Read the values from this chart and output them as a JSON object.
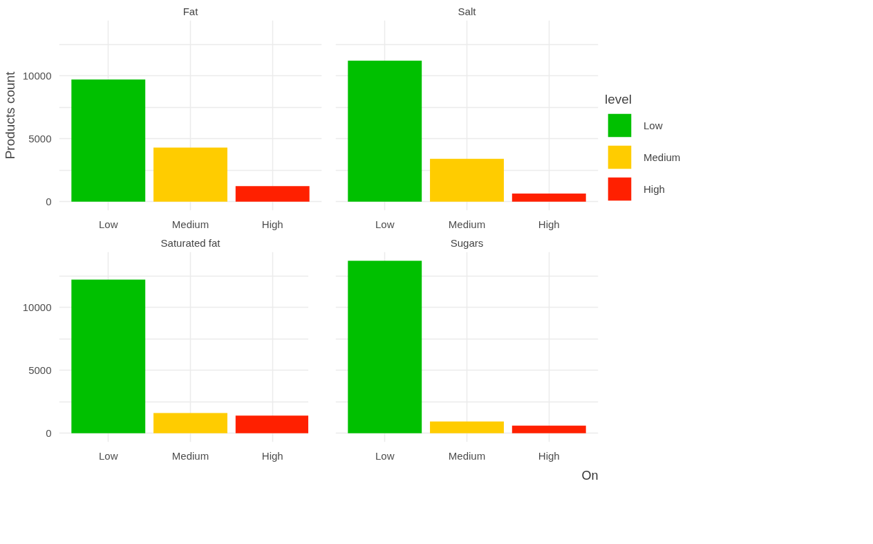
{
  "chart_data": [
    {
      "type": "bar",
      "title": "Fat",
      "ylabel": "Products count",
      "categories": [
        "Low",
        "Medium",
        "High"
      ],
      "series": [
        {
          "color": "#00c000",
          "values": [
            9700,
            null,
            null
          ]
        },
        {
          "color": "#ffcc00",
          "values": [
            null,
            4300,
            null
          ]
        },
        {
          "color": "#ff2000",
          "values": [
            null,
            null,
            1240
          ]
        }
      ],
      "ylim": [
        -700,
        14400
      ],
      "yticks": [
        0,
        {
          "value": 2500,
          "label": null
        },
        5000,
        {
          "value": 7500,
          "label": null
        },
        10000,
        {
          "value": 12500,
          "label": null
        }
      ],
      "grid": true
    },
    {
      "type": "bar",
      "title": "Salt",
      "tick_labels": "x",
      "legend_title": "level",
      "legend": "right",
      "categories": [
        "Low",
        "Medium",
        "High"
      ],
      "series": [
        {
          "name": "Low",
          "color": "#00c000",
          "values": [
            11200,
            null,
            null
          ]
        },
        {
          "name": "Medium",
          "color": "#ffcc00",
          "values": [
            null,
            3400,
            null
          ]
        },
        {
          "name": "High",
          "color": "#ff2000",
          "values": [
            null,
            null,
            650
          ]
        }
      ],
      "ylim": [
        -700,
        14400
      ],
      "yticks": [
        0,
        {
          "value": 2500,
          "label": null
        },
        5000,
        {
          "value": 7500,
          "label": null
        },
        10000,
        {
          "value": 12500,
          "label": null
        }
      ],
      "grid": true
    },
    {
      "type": "bar",
      "title": "Saturated fat",
      "categories": [
        "Low",
        "Medium",
        "High"
      ],
      "series": [
        {
          "color": "#00c000",
          "values": [
            12200,
            null,
            null
          ]
        },
        {
          "color": "#ffcc00",
          "values": [
            null,
            1600,
            null
          ]
        },
        {
          "color": "#ff2000",
          "values": [
            null,
            null,
            1400
          ]
        }
      ],
      "ylim": [
        -700,
        14400
      ],
      "yticks": [
        0,
        {
          "value": 2500,
          "label": null
        },
        5000,
        {
          "value": 7500,
          "label": null
        },
        10000,
        {
          "value": 12500,
          "label": null
        }
      ],
      "grid": true
    },
    {
      "type": "bar",
      "title": "Sugars",
      "tick_labels": "x",
      "categories": [
        "Low",
        "Medium",
        "High"
      ],
      "series": [
        {
          "color": "#00c000",
          "values": [
            13700,
            null,
            null
          ]
        },
        {
          "color": "#ffcc00",
          "values": [
            null,
            940,
            null
          ]
        },
        {
          "color": "#ff2000",
          "values": [
            null,
            null,
            600
          ]
        }
      ],
      "ylim": [
        -700,
        14400
      ],
      "yticks": [
        0,
        {
          "value": 2500,
          "label": null
        },
        5000,
        {
          "value": 7500,
          "label": null
        },
        10000,
        {
          "value": 12500,
          "label": null
        }
      ],
      "grid": true,
      "annotations": [
        "On"
      ]
    }
  ]
}
